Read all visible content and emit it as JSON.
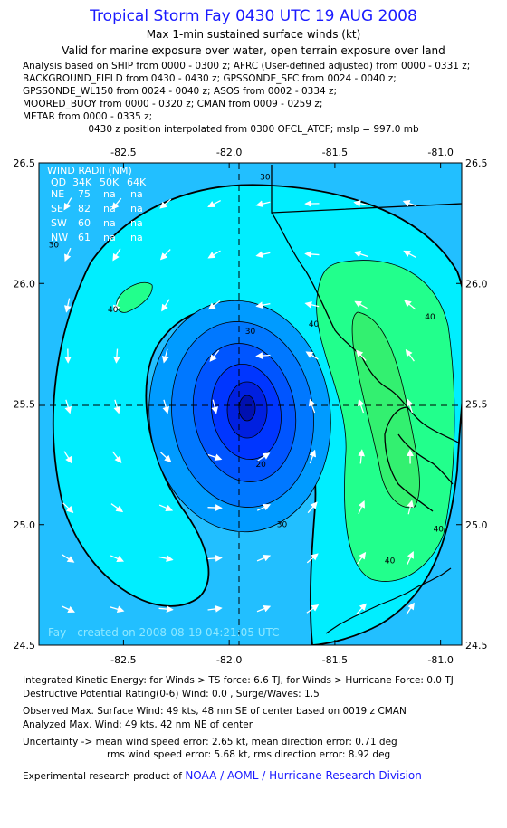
{
  "header": {
    "title": "Tropical Storm Fay 0430 UTC 19 AUG 2008",
    "subtitle1": "Max 1-min sustained surface winds (kt)",
    "subtitle2": "Valid for marine exposure over water, open terrain exposure over land"
  },
  "analysis_lines": [
    "Analysis based on  SHIP from 0000 - 0300 z;  AFRC (User-defined adjusted) from 0000 - 0331 z;",
    "BACKGROUND_FIELD from 0430 - 0430 z;  GPSSONDE_SFC from 0024 - 0040 z;",
    "GPSSONDE_WL150 from 0024 - 0040 z;  ASOS from 0002 - 0334 z;",
    "MOORED_BUOY from 0000 - 0320 z;  CMAN from 0009 - 0259 z;",
    "METAR from 0000 - 0335 z;"
  ],
  "position_line": "0430 z position interpolated from 0300 OFCL_ATCF; mslp = 997.0 mb",
  "chart_data": {
    "type": "contour",
    "xlim": [
      -82.9,
      -80.9
    ],
    "ylim": [
      24.5,
      26.5
    ],
    "x_ticks": [
      "-82.5",
      "-82.0",
      "-81.5",
      "-81.0"
    ],
    "x_tick_values": [
      -82.5,
      -82.0,
      -81.5,
      -81.0
    ],
    "y_ticks": [
      "26.5",
      "26.0",
      "25.5",
      "25.0",
      "24.5"
    ],
    "y_tick_values": [
      26.5,
      26.0,
      25.5,
      25.0,
      24.5
    ],
    "center": {
      "lon": -81.9,
      "lat": 25.48
    },
    "contour_labels": [
      {
        "text": "30",
        "lon": -81.83,
        "lat": 26.43
      },
      {
        "text": "30",
        "lon": -82.83,
        "lat": 26.15
      },
      {
        "text": "40",
        "lon": -82.55,
        "lat": 25.88
      },
      {
        "text": "40",
        "lon": -81.6,
        "lat": 25.82
      },
      {
        "text": "40",
        "lon": -81.05,
        "lat": 25.85
      },
      {
        "text": "30",
        "lon": -81.9,
        "lat": 25.79
      },
      {
        "text": "20",
        "lon": -81.85,
        "lat": 25.24
      },
      {
        "text": "30",
        "lon": -81.75,
        "lat": 24.99
      },
      {
        "text": "40",
        "lon": -81.24,
        "lat": 24.84
      },
      {
        "text": "40",
        "lon": -81.01,
        "lat": 24.97
      }
    ],
    "wind_radii_table": {
      "title": "WIND RADII (NM)",
      "header": [
        "QD",
        "34K",
        "50K",
        "64K"
      ],
      "rows": [
        [
          "NE",
          "75",
          "na",
          "na"
        ],
        [
          "SE",
          "82",
          "na",
          "na"
        ],
        [
          "SW",
          "60",
          "na",
          "na"
        ],
        [
          "NW",
          "61",
          "na",
          "na"
        ]
      ]
    },
    "watermark": "Fay - created on 2008-08-19 04:21:05 UTC",
    "colors": {
      "outer": "#22bfff",
      "band30": "#00eeff",
      "band40": "#22ff8c",
      "band45": "#33f070",
      "core": [
        "#009bff",
        "#0078ff",
        "#0055ff",
        "#0036ff",
        "#0020e0",
        "#0010b0"
      ]
    }
  },
  "footer": {
    "ike": "Integrated Kinetic Energy:  for Winds > TS force: 6.6 TJ,  for Winds > Hurricane Force: 0.0 TJ",
    "dpr": "Destructive Potential Rating(0-6)   Wind: 0.0 , Surge/Waves: 1.5",
    "obs_max": "Observed Max. Surface Wind: 49 kts, 48 nm SE of center based on 0019 z CMAN",
    "an_max": "Analyzed Max. Wind: 49 kts, 42 nm NE of center",
    "unc1": "Uncertainty -> mean wind speed error: 2.65 kt,   mean direction error: 0.71 deg",
    "unc2": "rms wind speed error: 5.68 kt,   rms direction error: 8.92 deg",
    "credit_prefix": "Experimental research product of ",
    "credit_org": "NOAA / AOML / Hurricane Research Division"
  }
}
